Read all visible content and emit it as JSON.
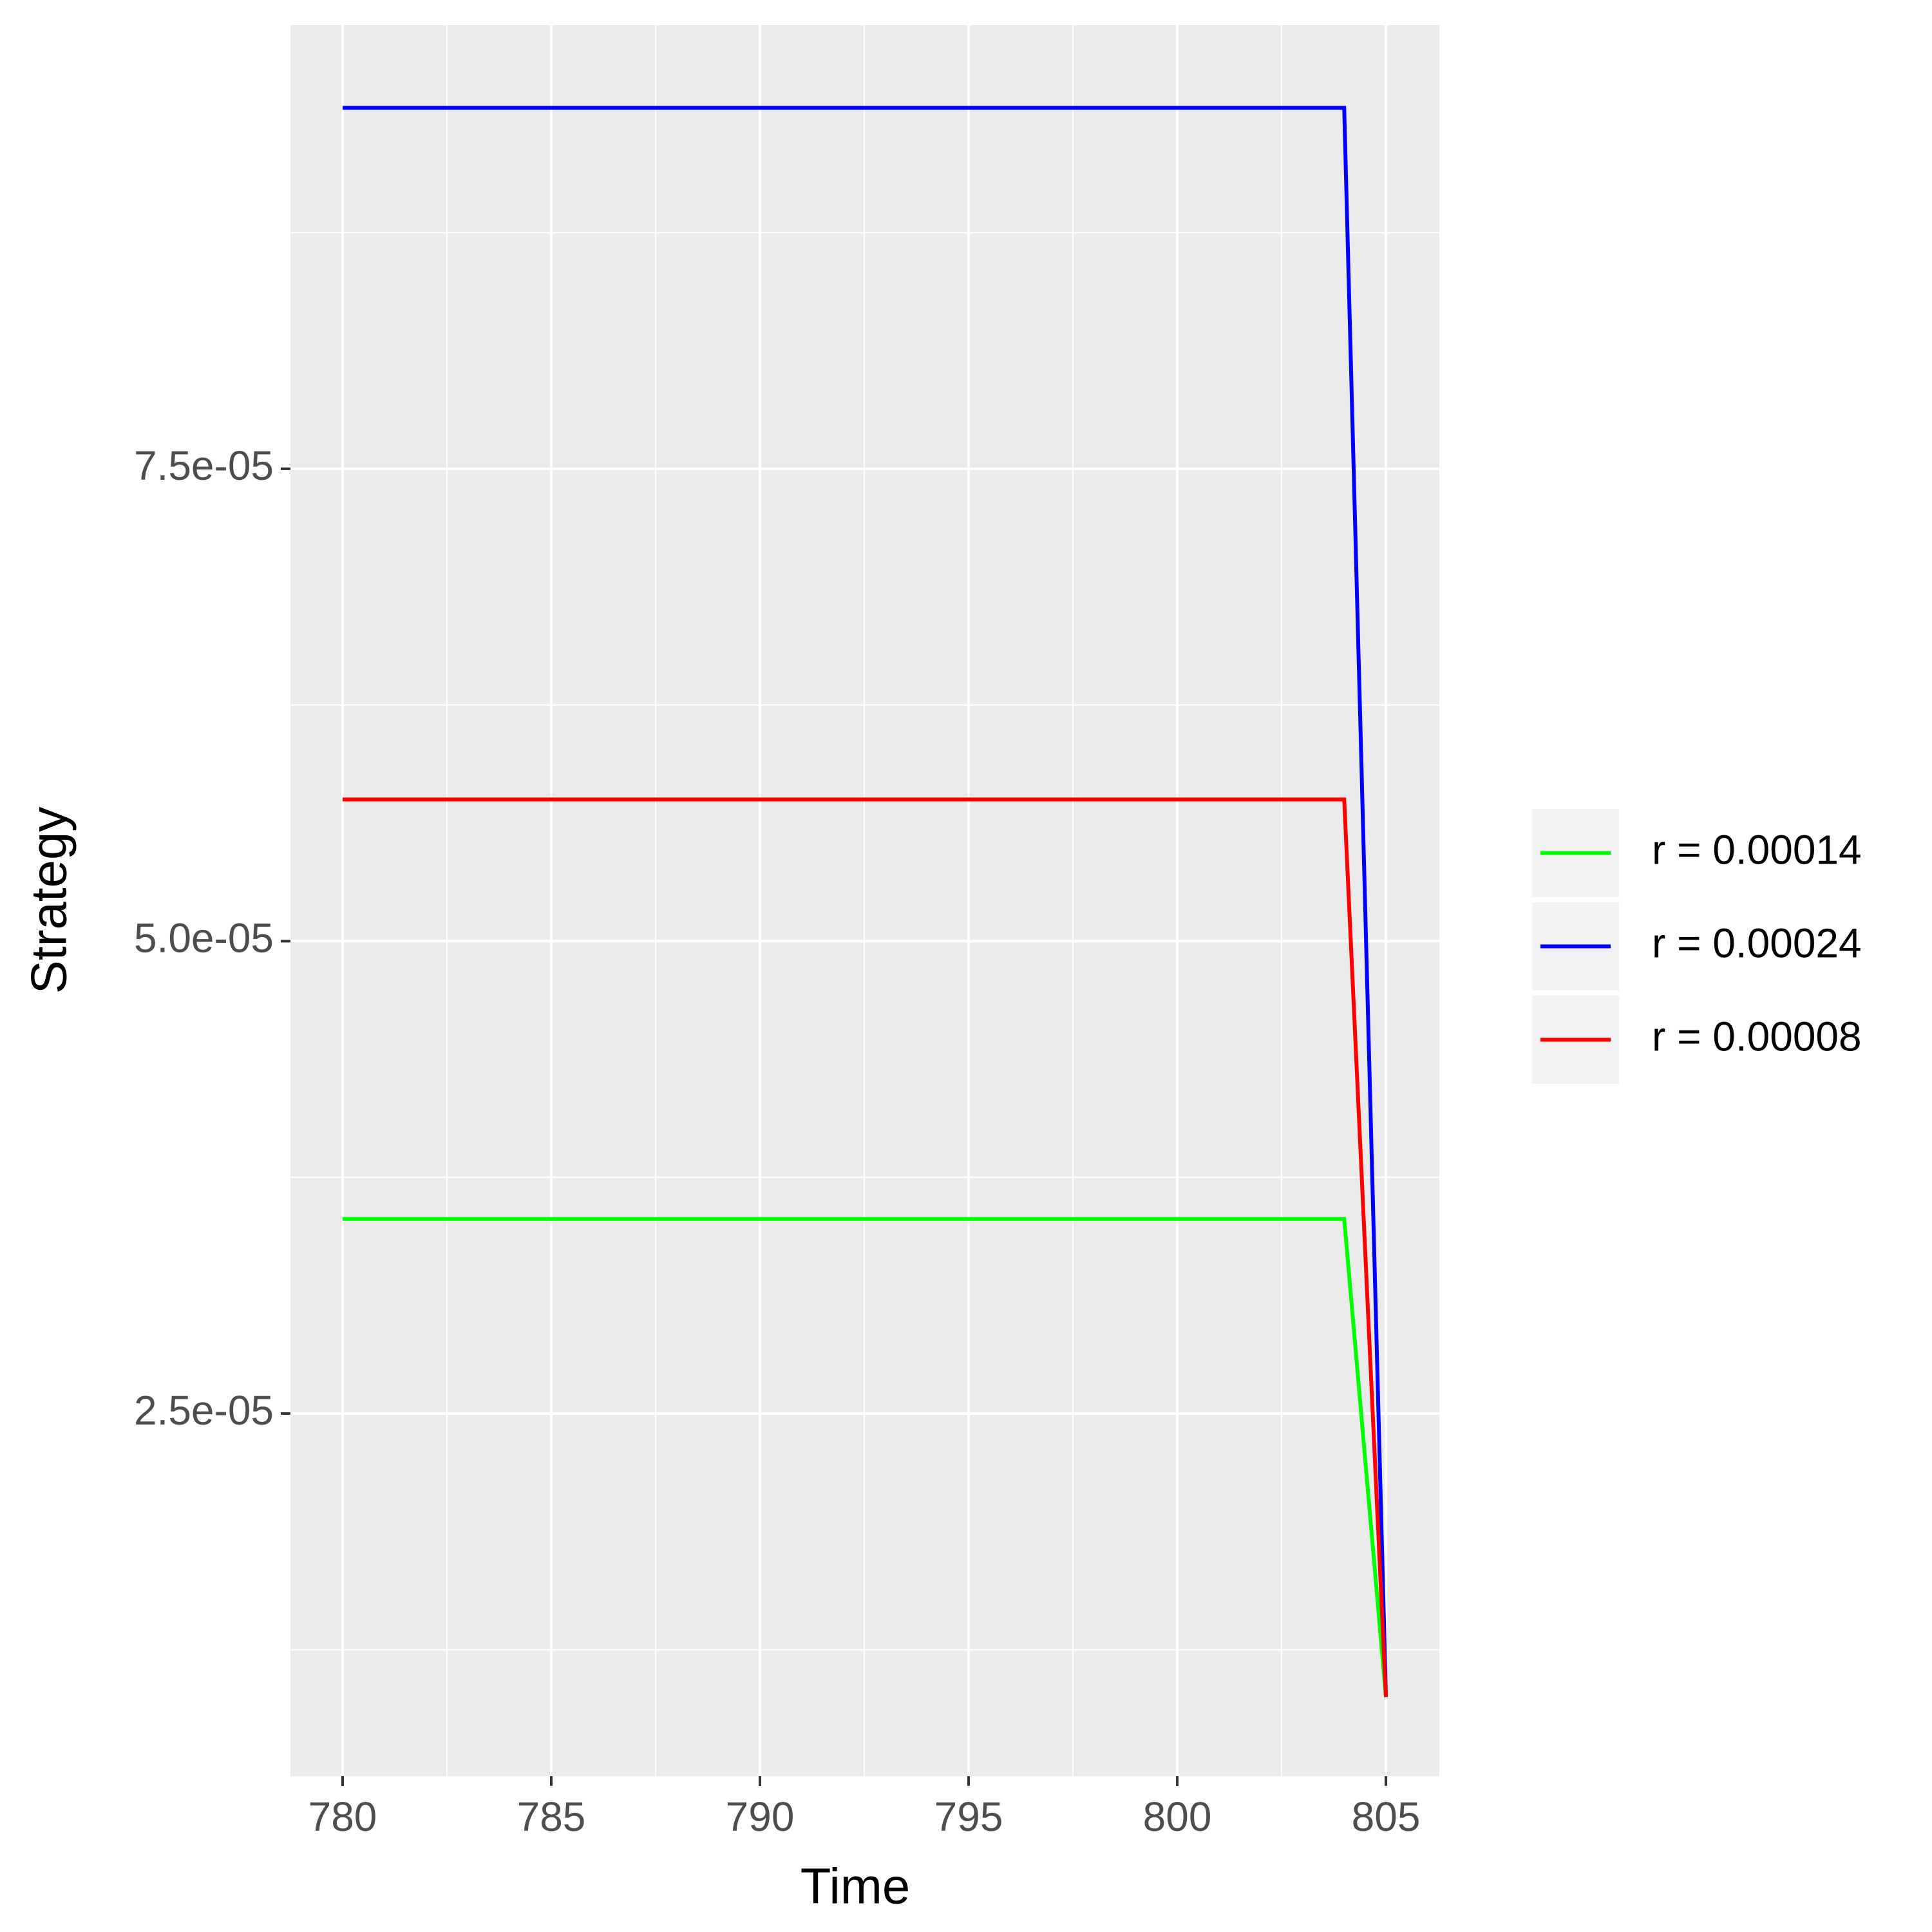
{
  "chart_data": {
    "type": "line",
    "x_label": "Time",
    "y_label": "Strategy",
    "x": [
      780,
      781,
      782,
      783,
      784,
      785,
      786,
      787,
      788,
      789,
      790,
      791,
      792,
      793,
      794,
      795,
      796,
      797,
      798,
      799,
      800,
      801,
      802,
      803,
      804,
      805
    ],
    "series": [
      {
        "name": "r = 0.00014",
        "color": "#00ff00",
        "values": [
          3.53e-05,
          3.53e-05,
          3.53e-05,
          3.53e-05,
          3.53e-05,
          3.53e-05,
          3.53e-05,
          3.53e-05,
          3.53e-05,
          3.53e-05,
          3.53e-05,
          3.53e-05,
          3.53e-05,
          3.53e-05,
          3.53e-05,
          3.53e-05,
          3.53e-05,
          3.53e-05,
          3.53e-05,
          3.53e-05,
          3.53e-05,
          3.53e-05,
          3.53e-05,
          3.53e-05,
          3.53e-05,
          1e-05
        ]
      },
      {
        "name": "r = 0.00024",
        "color": "#0000ff",
        "values": [
          9.41e-05,
          9.41e-05,
          9.41e-05,
          9.41e-05,
          9.41e-05,
          9.41e-05,
          9.41e-05,
          9.41e-05,
          9.41e-05,
          9.41e-05,
          9.41e-05,
          9.41e-05,
          9.41e-05,
          9.41e-05,
          9.41e-05,
          9.41e-05,
          9.41e-05,
          9.41e-05,
          9.41e-05,
          9.41e-05,
          9.41e-05,
          9.41e-05,
          9.41e-05,
          9.41e-05,
          9.41e-05,
          1e-05
        ]
      },
      {
        "name": "r = 0.00008",
        "color": "#ff0000",
        "values": [
          5.75e-05,
          5.75e-05,
          5.75e-05,
          5.75e-05,
          5.75e-05,
          5.75e-05,
          5.75e-05,
          5.75e-05,
          5.75e-05,
          5.75e-05,
          5.75e-05,
          5.75e-05,
          5.75e-05,
          5.75e-05,
          5.75e-05,
          5.75e-05,
          5.75e-05,
          5.75e-05,
          5.75e-05,
          5.75e-05,
          5.75e-05,
          5.75e-05,
          5.75e-05,
          5.75e-05,
          5.75e-05,
          1e-05
        ]
      }
    ],
    "xlim": [
      778.75,
      806.28
    ],
    "xticks": [
      780,
      785,
      790,
      795,
      800,
      805
    ],
    "ylim": [
      5.81e-06,
      9.848e-05
    ],
    "yticks": [
      {
        "value": 2.5e-05,
        "label": "2.5e-05"
      },
      {
        "value": 5e-05,
        "label": "5.0e-05"
      },
      {
        "value": 7.5e-05,
        "label": "7.5e-05"
      }
    ],
    "grid": true,
    "legend": "right"
  }
}
